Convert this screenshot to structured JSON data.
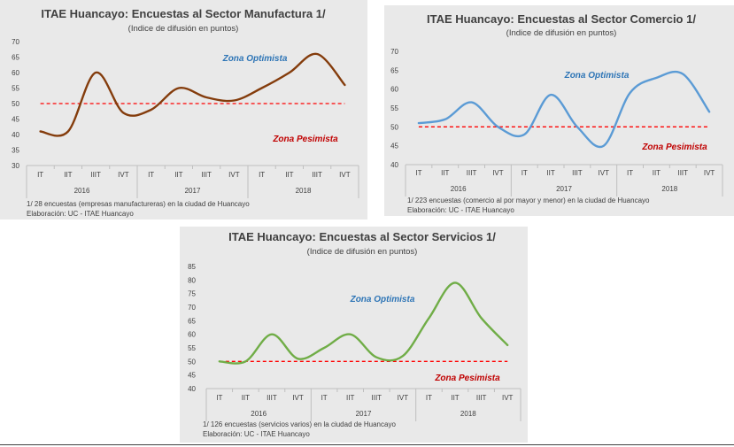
{
  "chart_data": [
    {
      "type": "line",
      "title": "ITAE Huancayo: Encuestas al Sector Manufactura 1/",
      "subtitle": "(Indice de difusión en puntos)",
      "categories": [
        "IT",
        "IIT",
        "IIIT",
        "IVT",
        "IT",
        "IIT",
        "IIIT",
        "IVT",
        "IT",
        "IIT",
        "IIIT",
        "IVT"
      ],
      "year_labels": [
        "2016",
        "2017",
        "2018"
      ],
      "series": [
        {
          "values": [
            41,
            41,
            60,
            47,
            48,
            55,
            52,
            51,
            55,
            60,
            66,
            56
          ],
          "color": "#843c0c"
        }
      ],
      "threshold": 50,
      "threshold_color": "#ff0000",
      "ylim": [
        30,
        70
      ],
      "yticks": [
        30,
        35,
        40,
        45,
        50,
        55,
        60,
        65,
        70
      ],
      "zone_optimista": "Zona Optimista",
      "zone_pesimista": "Zona Pesimista",
      "notes": [
        "1/ 28 encuestas (empresas manufactureras) en la ciudad de Huancayo",
        "Elaboración: UC - ITAE Huancayo"
      ]
    },
    {
      "type": "line",
      "title": "ITAE Huancayo: Encuestas al Sector Comercio 1/",
      "subtitle": "(Indice de difusión en puntos)",
      "categories": [
        "IT",
        "IIT",
        "IIIT",
        "IVT",
        "IT",
        "IIT",
        "IIIT",
        "IVT",
        "IT",
        "IIT",
        "IIIT",
        "IVT"
      ],
      "year_labels": [
        "2016",
        "2017",
        "2018"
      ],
      "series": [
        {
          "values": [
            51,
            52,
            56.5,
            50,
            48,
            58.5,
            50,
            45,
            59,
            63,
            64,
            54
          ],
          "color": "#5b9bd5"
        }
      ],
      "threshold": 50,
      "threshold_color": "#ff0000",
      "ylim": [
        40,
        70
      ],
      "yticks": [
        40,
        45,
        50,
        55,
        60,
        65,
        70
      ],
      "zone_optimista": "Zona Optimista",
      "zone_pesimista": "Zona Pesimista",
      "notes": [
        "1/ 223 encuestas (comercio al por mayor y menor) en la ciudad de Huancayo",
        "Elaboración: UC - ITAE Huancayo"
      ]
    },
    {
      "type": "line",
      "title": "ITAE Huancayo: Encuestas al Sector Servicios 1/",
      "subtitle": "(Indice de difusión en puntos)",
      "categories": [
        "IT",
        "IIT",
        "IIIT",
        "IVT",
        "IT",
        "IIT",
        "IIIT",
        "IVT",
        "IT",
        "IIT",
        "IIIT",
        "IVT"
      ],
      "year_labels": [
        "2016",
        "2017",
        "2018"
      ],
      "series": [
        {
          "values": [
            50,
            50,
            60,
            51,
            55,
            60,
            51.5,
            52,
            66,
            79,
            66,
            56
          ],
          "color": "#70ad47"
        }
      ],
      "threshold": 50,
      "threshold_color": "#ff0000",
      "ylim": [
        40,
        85
      ],
      "yticks": [
        40,
        45,
        50,
        55,
        60,
        65,
        70,
        75,
        80,
        85
      ],
      "zone_optimista": "Zona Optimista",
      "zone_pesimista": "Zona Pesimista",
      "notes": [
        "1/ 126 encuestas (servicios varios) en la ciudad de Huancayo",
        "Elaboración: UC - ITAE Huancayo"
      ]
    }
  ]
}
